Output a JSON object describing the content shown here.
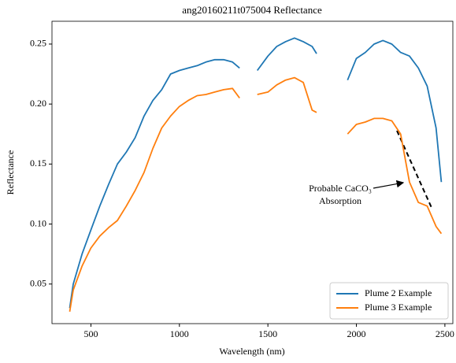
{
  "chart_data": {
    "type": "line",
    "title": "ang20160211t075004 Reflectance",
    "xlabel": "Wavelength (nm)",
    "ylabel": "Reflectance",
    "annotation": [
      "Probable CaCO₃",
      "Absorption"
    ],
    "x": [
      380,
      400,
      450,
      500,
      550,
      600,
      650,
      700,
      750,
      800,
      850,
      900,
      950,
      1000,
      1050,
      1100,
      1150,
      1200,
      1250,
      1300,
      1340,
      1390,
      1440,
      1500,
      1550,
      1600,
      1650,
      1700,
      1750,
      1775,
      1860,
      1950,
      2000,
      2050,
      2100,
      2150,
      2200,
      2250,
      2300,
      2350,
      2400,
      2450,
      2480
    ],
    "series": [
      {
        "name": "Plume 2 Example",
        "color": "#1f77b4",
        "values": [
          0.03,
          0.05,
          0.075,
          0.095,
          0.115,
          0.133,
          0.15,
          0.16,
          0.172,
          0.19,
          0.203,
          0.212,
          0.225,
          0.228,
          0.23,
          0.232,
          0.235,
          0.237,
          0.237,
          0.235,
          0.23,
          null,
          0.228,
          0.24,
          0.248,
          0.252,
          0.255,
          0.252,
          0.248,
          0.242,
          null,
          0.22,
          0.238,
          0.243,
          0.25,
          0.253,
          0.25,
          0.243,
          0.24,
          0.23,
          0.215,
          0.18,
          0.135
        ]
      },
      {
        "name": "Plume 3 Example",
        "color": "#ff7f0e",
        "values": [
          0.027,
          0.045,
          0.065,
          0.08,
          0.09,
          0.097,
          0.103,
          0.115,
          0.128,
          0.143,
          0.163,
          0.18,
          0.19,
          0.198,
          0.203,
          0.207,
          0.208,
          0.21,
          0.212,
          0.213,
          0.205,
          null,
          0.208,
          0.21,
          0.216,
          0.22,
          0.222,
          0.218,
          0.195,
          0.193,
          null,
          0.175,
          0.183,
          0.185,
          0.188,
          0.188,
          0.186,
          0.175,
          0.135,
          0.118,
          0.115,
          0.098,
          0.092
        ]
      }
    ],
    "xlim": [
      280,
      2545
    ],
    "ylim": [
      0.017,
      0.269
    ],
    "xticks": [
      500,
      1000,
      1500,
      2000,
      2500
    ],
    "yticks": [
      0.05,
      {
        "value": 0.1,
        "label": "0.10"
      },
      0.15,
      {
        "value": 0.2,
        "label": "0.20"
      },
      0.25
    ],
    "legend": "lower right",
    "grid": false
  }
}
